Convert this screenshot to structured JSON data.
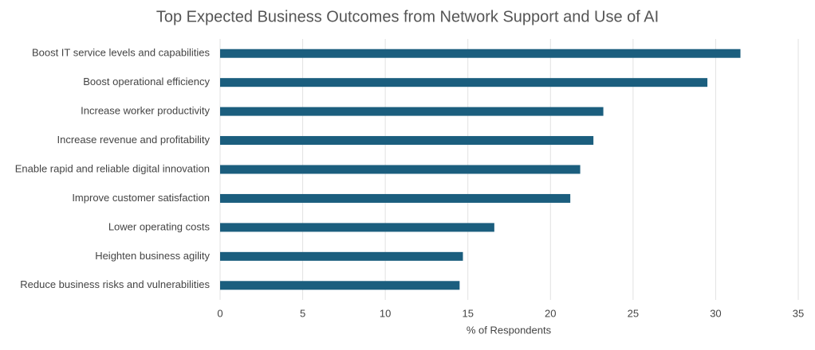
{
  "chart_data": {
    "type": "bar",
    "horizontal": true,
    "title": "Top Expected Business Outcomes from Network Support and Use of AI",
    "x_label": "% of Respondents",
    "categories": [
      "Boost IT service levels and capabilities",
      "Boost operational efficiency",
      "Increase worker productivity",
      "Increase revenue and profitability",
      "Enable rapid and reliable digital innovation",
      "Improve customer satisfaction",
      "Lower operating costs",
      "Heighten business agility",
      "Reduce business risks and vulnerabilities"
    ],
    "values": [
      31.5,
      29.5,
      23.2,
      22.6,
      21.8,
      21.2,
      16.6,
      14.7,
      14.5
    ],
    "color": "#1b5e7e",
    "xlim": [
      0,
      35
    ],
    "xticks": [
      0,
      5,
      10,
      15,
      20,
      25,
      30,
      35
    ],
    "grid": true
  }
}
